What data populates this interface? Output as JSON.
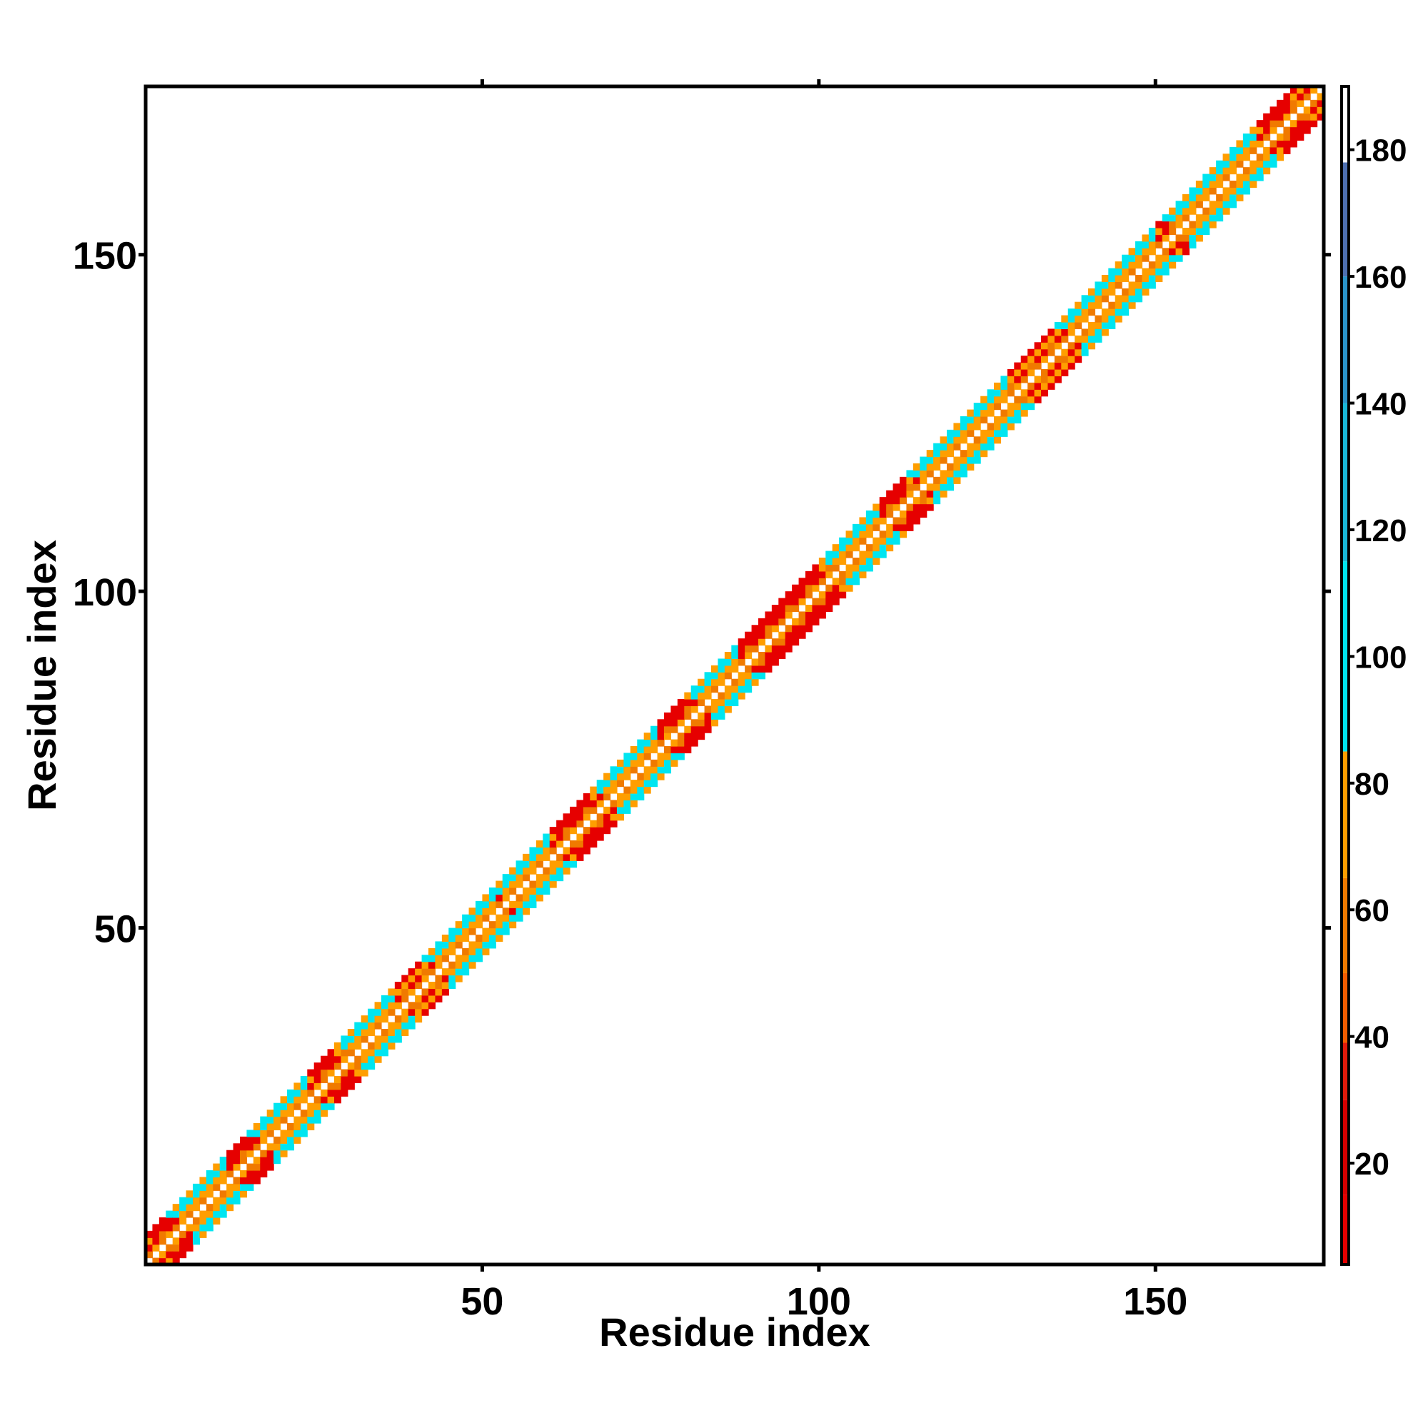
{
  "chart_data": {
    "type": "heatmap",
    "title": "",
    "xlabel": "Residue index",
    "ylabel": "Residue index",
    "xlim": [
      0,
      175
    ],
    "ylim": [
      0,
      175
    ],
    "x_ticks": [
      50,
      100,
      150
    ],
    "y_ticks": [
      50,
      100,
      150
    ],
    "grid": false,
    "legend": "none",
    "background": "white",
    "diagonal": {
      "pairs": "i,j with 1 <= |i-j| <= 4 (contact band around diagonal)",
      "strands": [
        {
          "start": 8,
          "end": 12
        },
        {
          "start": 20,
          "end": 24
        },
        {
          "start": 33,
          "end": 37
        },
        {
          "start": 46,
          "end": 52
        },
        {
          "start": 56,
          "end": 60
        },
        {
          "start": 71,
          "end": 76
        },
        {
          "start": 85,
          "end": 88
        },
        {
          "start": 105,
          "end": 109
        },
        {
          "start": 118,
          "end": 128
        },
        {
          "start": 140,
          "end": 150
        },
        {
          "start": 156,
          "end": 165
        }
      ],
      "helices": [
        {
          "start": 2,
          "end": 7
        },
        {
          "start": 13,
          "end": 19
        },
        {
          "start": 26,
          "end": 31
        },
        {
          "start": 62,
          "end": 69
        },
        {
          "start": 77,
          "end": 84
        },
        {
          "start": 89,
          "end": 103
        },
        {
          "start": 110,
          "end": 116
        },
        {
          "start": 152,
          "end": 155
        },
        {
          "start": 167,
          "end": 173
        }
      ]
    },
    "colorbar": {
      "label": "",
      "range": [
        4,
        190
      ],
      "ticks": [
        20,
        40,
        60,
        80,
        100,
        120,
        140,
        160,
        180
      ],
      "tick_labels": [
        "20",
        "40",
        "60",
        "80",
        "100",
        "120",
        "140",
        "160",
        "180"
      ],
      "segments": [
        {
          "from": 4,
          "to": 15,
          "color": "#e60000"
        },
        {
          "from": 15,
          "to": 30,
          "color": "#d60000"
        },
        {
          "from": 30,
          "to": 39,
          "color": "#e11b0b"
        },
        {
          "from": 39,
          "to": 50,
          "color": "#f25c00"
        },
        {
          "from": 50,
          "to": 65,
          "color": "#f07a00"
        },
        {
          "from": 65,
          "to": 85,
          "color": "#ff9e00"
        },
        {
          "from": 85,
          "to": 115,
          "color": "#00e5f0"
        },
        {
          "from": 115,
          "to": 140,
          "color": "#19b8d8"
        },
        {
          "from": 140,
          "to": 160,
          "color": "#2a93c9"
        },
        {
          "from": 160,
          "to": 178,
          "color": "#4e6fb0"
        },
        {
          "from": 178,
          "to": 190,
          "color": "#ffffff"
        }
      ]
    },
    "cell_colors": {
      "red": "#e60000",
      "orange": "#ff9e00",
      "dark_orange": "#f07a00",
      "cyan": "#00e5f0"
    }
  }
}
